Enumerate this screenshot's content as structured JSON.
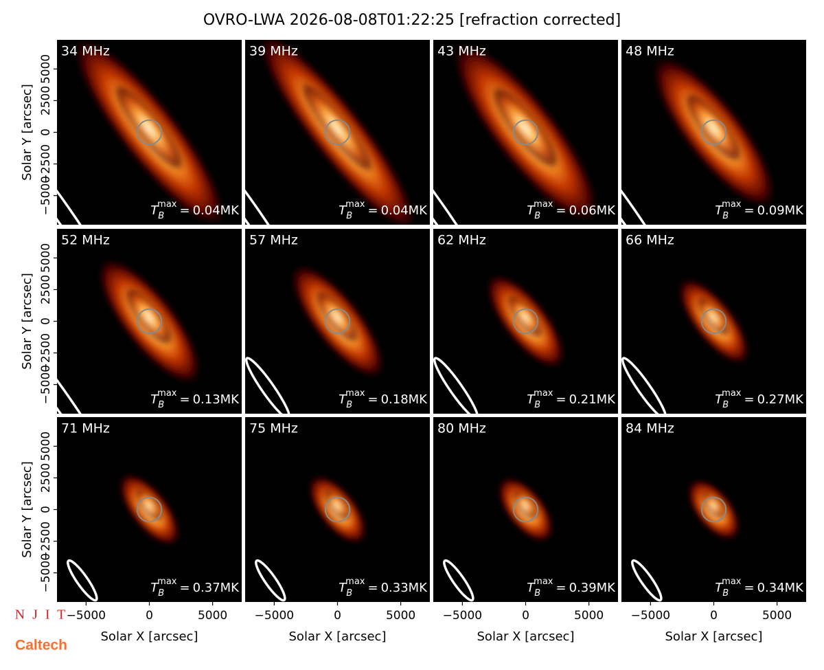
{
  "chart_data": {
    "type": "image-grid",
    "title": "OVRO-LWA 2026-08-08T01:22:25 [refraction corrected]",
    "xlabel": "Solar X [arcsec]",
    "ylabel": "Solar Y [arcsec]",
    "xlim": [
      -7300,
      7300
    ],
    "ylim": [
      -7300,
      7300
    ],
    "xticks": [
      {
        "value": -5000,
        "label": "−5000"
      },
      0,
      5000
    ],
    "yticks": [
      {
        "value": -5000,
        "label": "−5000"
      },
      {
        "value": -2500,
        "label": "−2500"
      },
      0,
      2500,
      5000
    ],
    "tb_symbol": "T",
    "tb_sub": "B",
    "tb_sup": "max",
    "tb_eq": "=",
    "panels": [
      {
        "freq": "34 MHz",
        "tb_max": "0.04MK"
      },
      {
        "freq": "39 MHz",
        "tb_max": "0.04MK"
      },
      {
        "freq": "43 MHz",
        "tb_max": "0.06MK"
      },
      {
        "freq": "48 MHz",
        "tb_max": "0.09MK"
      },
      {
        "freq": "52 MHz",
        "tb_max": "0.13MK"
      },
      {
        "freq": "57 MHz",
        "tb_max": "0.18MK"
      },
      {
        "freq": "62 MHz",
        "tb_max": "0.21MK"
      },
      {
        "freq": "66 MHz",
        "tb_max": "0.27MK"
      },
      {
        "freq": "71 MHz",
        "tb_max": "0.37MK"
      },
      {
        "freq": "75 MHz",
        "tb_max": "0.33MK"
      },
      {
        "freq": "80 MHz",
        "tb_max": "0.39MK"
      },
      {
        "freq": "84 MHz",
        "tb_max": "0.34MK"
      }
    ],
    "logos": [
      "N J I T",
      "Caltech"
    ]
  }
}
